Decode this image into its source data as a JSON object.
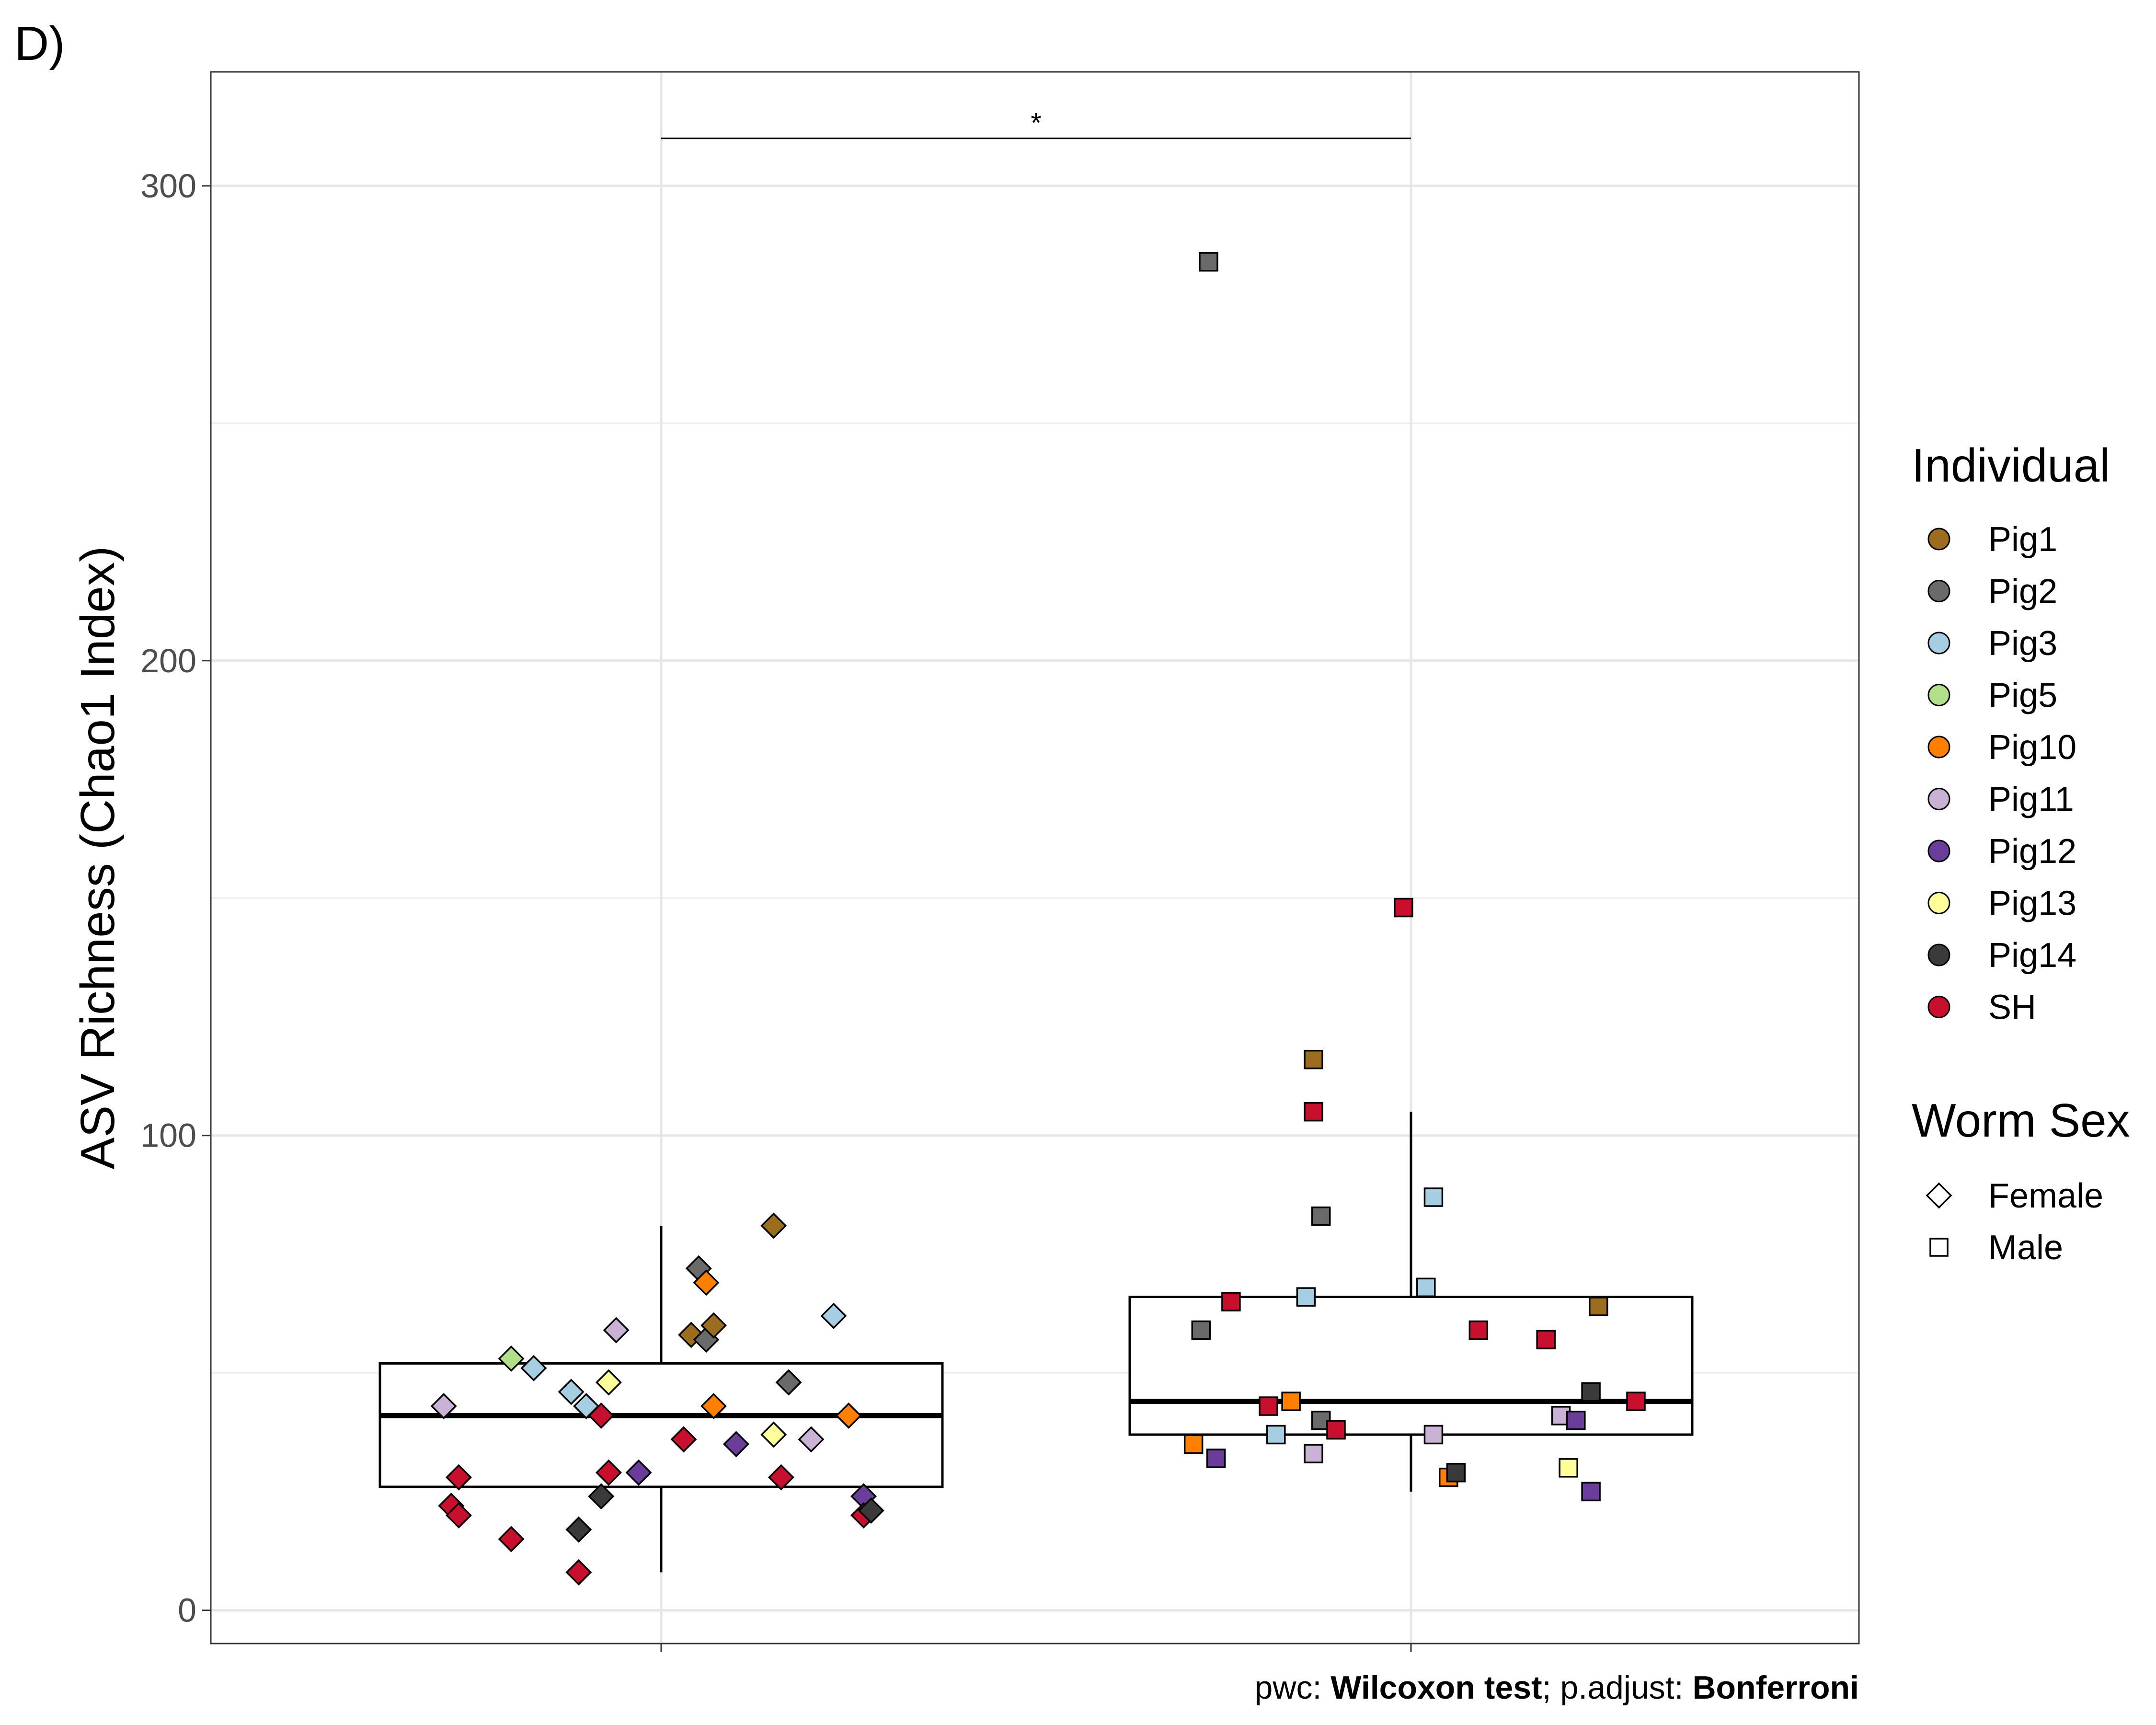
{
  "panel_label": "D)",
  "caption": {
    "prefix": "pwc: ",
    "test": "Wilcoxon test",
    "middle": "; p.adjust: ",
    "adjust": "Bonferroni"
  },
  "legend": {
    "individual_title": "Individual",
    "sex_title": "Worm Sex",
    "individuals": [
      {
        "name": "Pig1",
        "color": "#9C6D1F"
      },
      {
        "name": "Pig2",
        "color": "#6A6A6A"
      },
      {
        "name": "Pig3",
        "color": "#A6CEE3"
      },
      {
        "name": "Pig5",
        "color": "#B2DF8A"
      },
      {
        "name": "Pig10",
        "color": "#FF7F00"
      },
      {
        "name": "Pig11",
        "color": "#CAB2D6"
      },
      {
        "name": "Pig12",
        "color": "#6A3D9A"
      },
      {
        "name": "Pig13",
        "color": "#FFFF99"
      },
      {
        "name": "Pig14",
        "color": "#3A3A3A"
      },
      {
        "name": "SH",
        "color": "#C8102E"
      }
    ],
    "sexes": [
      {
        "name": "Female",
        "shape": "diamond"
      },
      {
        "name": "Male",
        "shape": "square"
      }
    ]
  },
  "chart_data": {
    "type": "box",
    "ylabel": "ASV Richness (Chao1 Index)",
    "xlabel": "",
    "ylim": [
      -7,
      324
    ],
    "yticks": [
      0,
      100,
      200,
      300
    ],
    "grid": true,
    "significance": {
      "label": "*",
      "y": 310,
      "from": "Female",
      "to": "Male"
    },
    "groups": [
      {
        "name": "Female",
        "box": {
          "q1": 26,
          "median": 41,
          "q3": 52,
          "whisker_low": 8,
          "whisker_high": 81
        },
        "points": [
          {
            "x": -0.29,
            "y": 43,
            "ind": "Pig11"
          },
          {
            "x": -0.28,
            "y": 22,
            "ind": "SH"
          },
          {
            "x": -0.27,
            "y": 20,
            "ind": "SH"
          },
          {
            "x": -0.27,
            "y": 28,
            "ind": "SH"
          },
          {
            "x": -0.2,
            "y": 15,
            "ind": "SH"
          },
          {
            "x": -0.2,
            "y": 53,
            "ind": "Pig5"
          },
          {
            "x": -0.17,
            "y": 51,
            "ind": "Pig3"
          },
          {
            "x": -0.12,
            "y": 46,
            "ind": "Pig3"
          },
          {
            "x": -0.11,
            "y": 17,
            "ind": "Pig14"
          },
          {
            "x": -0.11,
            "y": 8,
            "ind": "SH"
          },
          {
            "x": -0.1,
            "y": 43,
            "ind": "Pig3"
          },
          {
            "x": -0.08,
            "y": 24,
            "ind": "Pig14"
          },
          {
            "x": -0.08,
            "y": 41,
            "ind": "SH"
          },
          {
            "x": -0.07,
            "y": 48,
            "ind": "Pig13"
          },
          {
            "x": -0.07,
            "y": 29,
            "ind": "SH"
          },
          {
            "x": -0.06,
            "y": 59,
            "ind": "Pig11"
          },
          {
            "x": -0.03,
            "y": 29,
            "ind": "Pig12"
          },
          {
            "x": 0.03,
            "y": 36,
            "ind": "SH"
          },
          {
            "x": 0.04,
            "y": 58,
            "ind": "Pig1"
          },
          {
            "x": 0.05,
            "y": 72,
            "ind": "Pig2"
          },
          {
            "x": 0.06,
            "y": 57,
            "ind": "Pig2"
          },
          {
            "x": 0.06,
            "y": 69,
            "ind": "Pig10"
          },
          {
            "x": 0.07,
            "y": 60,
            "ind": "Pig1"
          },
          {
            "x": 0.07,
            "y": 43,
            "ind": "Pig10"
          },
          {
            "x": 0.1,
            "y": 35,
            "ind": "Pig12"
          },
          {
            "x": 0.15,
            "y": 37,
            "ind": "Pig13"
          },
          {
            "x": 0.15,
            "y": 81,
            "ind": "Pig1"
          },
          {
            "x": 0.16,
            "y": 28,
            "ind": "SH"
          },
          {
            "x": 0.17,
            "y": 48,
            "ind": "Pig2"
          },
          {
            "x": 0.2,
            "y": 36,
            "ind": "Pig11"
          },
          {
            "x": 0.23,
            "y": 62,
            "ind": "Pig3"
          },
          {
            "x": 0.25,
            "y": 41,
            "ind": "Pig10"
          },
          {
            "x": 0.27,
            "y": 24,
            "ind": "Pig12"
          },
          {
            "x": 0.27,
            "y": 20,
            "ind": "SH"
          },
          {
            "x": 0.28,
            "y": 21,
            "ind": "Pig14"
          }
        ]
      },
      {
        "name": "Male",
        "box": {
          "q1": 37,
          "median": 44,
          "q3": 66,
          "whisker_low": 25,
          "whisker_high": 105
        },
        "points": [
          {
            "x": -0.29,
            "y": 35,
            "ind": "Pig10"
          },
          {
            "x": -0.28,
            "y": 59,
            "ind": "Pig2"
          },
          {
            "x": -0.27,
            "y": 284,
            "ind": "Pig2"
          },
          {
            "x": -0.26,
            "y": 32,
            "ind": "Pig12"
          },
          {
            "x": -0.24,
            "y": 65,
            "ind": "SH"
          },
          {
            "x": -0.19,
            "y": 43,
            "ind": "SH"
          },
          {
            "x": -0.18,
            "y": 37,
            "ind": "Pig3"
          },
          {
            "x": -0.16,
            "y": 44,
            "ind": "Pig10"
          },
          {
            "x": -0.14,
            "y": 66,
            "ind": "Pig3"
          },
          {
            "x": -0.13,
            "y": 33,
            "ind": "Pig11"
          },
          {
            "x": -0.13,
            "y": 116,
            "ind": "Pig1"
          },
          {
            "x": -0.13,
            "y": 105,
            "ind": "SH"
          },
          {
            "x": -0.12,
            "y": 83,
            "ind": "Pig2"
          },
          {
            "x": -0.12,
            "y": 40,
            "ind": "Pig2"
          },
          {
            "x": -0.1,
            "y": 38,
            "ind": "SH"
          },
          {
            "x": -0.01,
            "y": 148,
            "ind": "SH"
          },
          {
            "x": 0.02,
            "y": 68,
            "ind": "Pig3"
          },
          {
            "x": 0.03,
            "y": 87,
            "ind": "Pig3"
          },
          {
            "x": 0.03,
            "y": 37,
            "ind": "Pig11"
          },
          {
            "x": 0.05,
            "y": 28,
            "ind": "Pig10"
          },
          {
            "x": 0.06,
            "y": 29,
            "ind": "Pig14"
          },
          {
            "x": 0.09,
            "y": 59,
            "ind": "SH"
          },
          {
            "x": 0.18,
            "y": 57,
            "ind": "SH"
          },
          {
            "x": 0.2,
            "y": 41,
            "ind": "Pig11"
          },
          {
            "x": 0.21,
            "y": 30,
            "ind": "Pig13"
          },
          {
            "x": 0.22,
            "y": 40,
            "ind": "Pig12"
          },
          {
            "x": 0.24,
            "y": 46,
            "ind": "Pig14"
          },
          {
            "x": 0.24,
            "y": 25,
            "ind": "Pig12"
          },
          {
            "x": 0.25,
            "y": 64,
            "ind": "Pig1"
          },
          {
            "x": 0.3,
            "y": 44,
            "ind": "SH"
          }
        ]
      }
    ]
  }
}
